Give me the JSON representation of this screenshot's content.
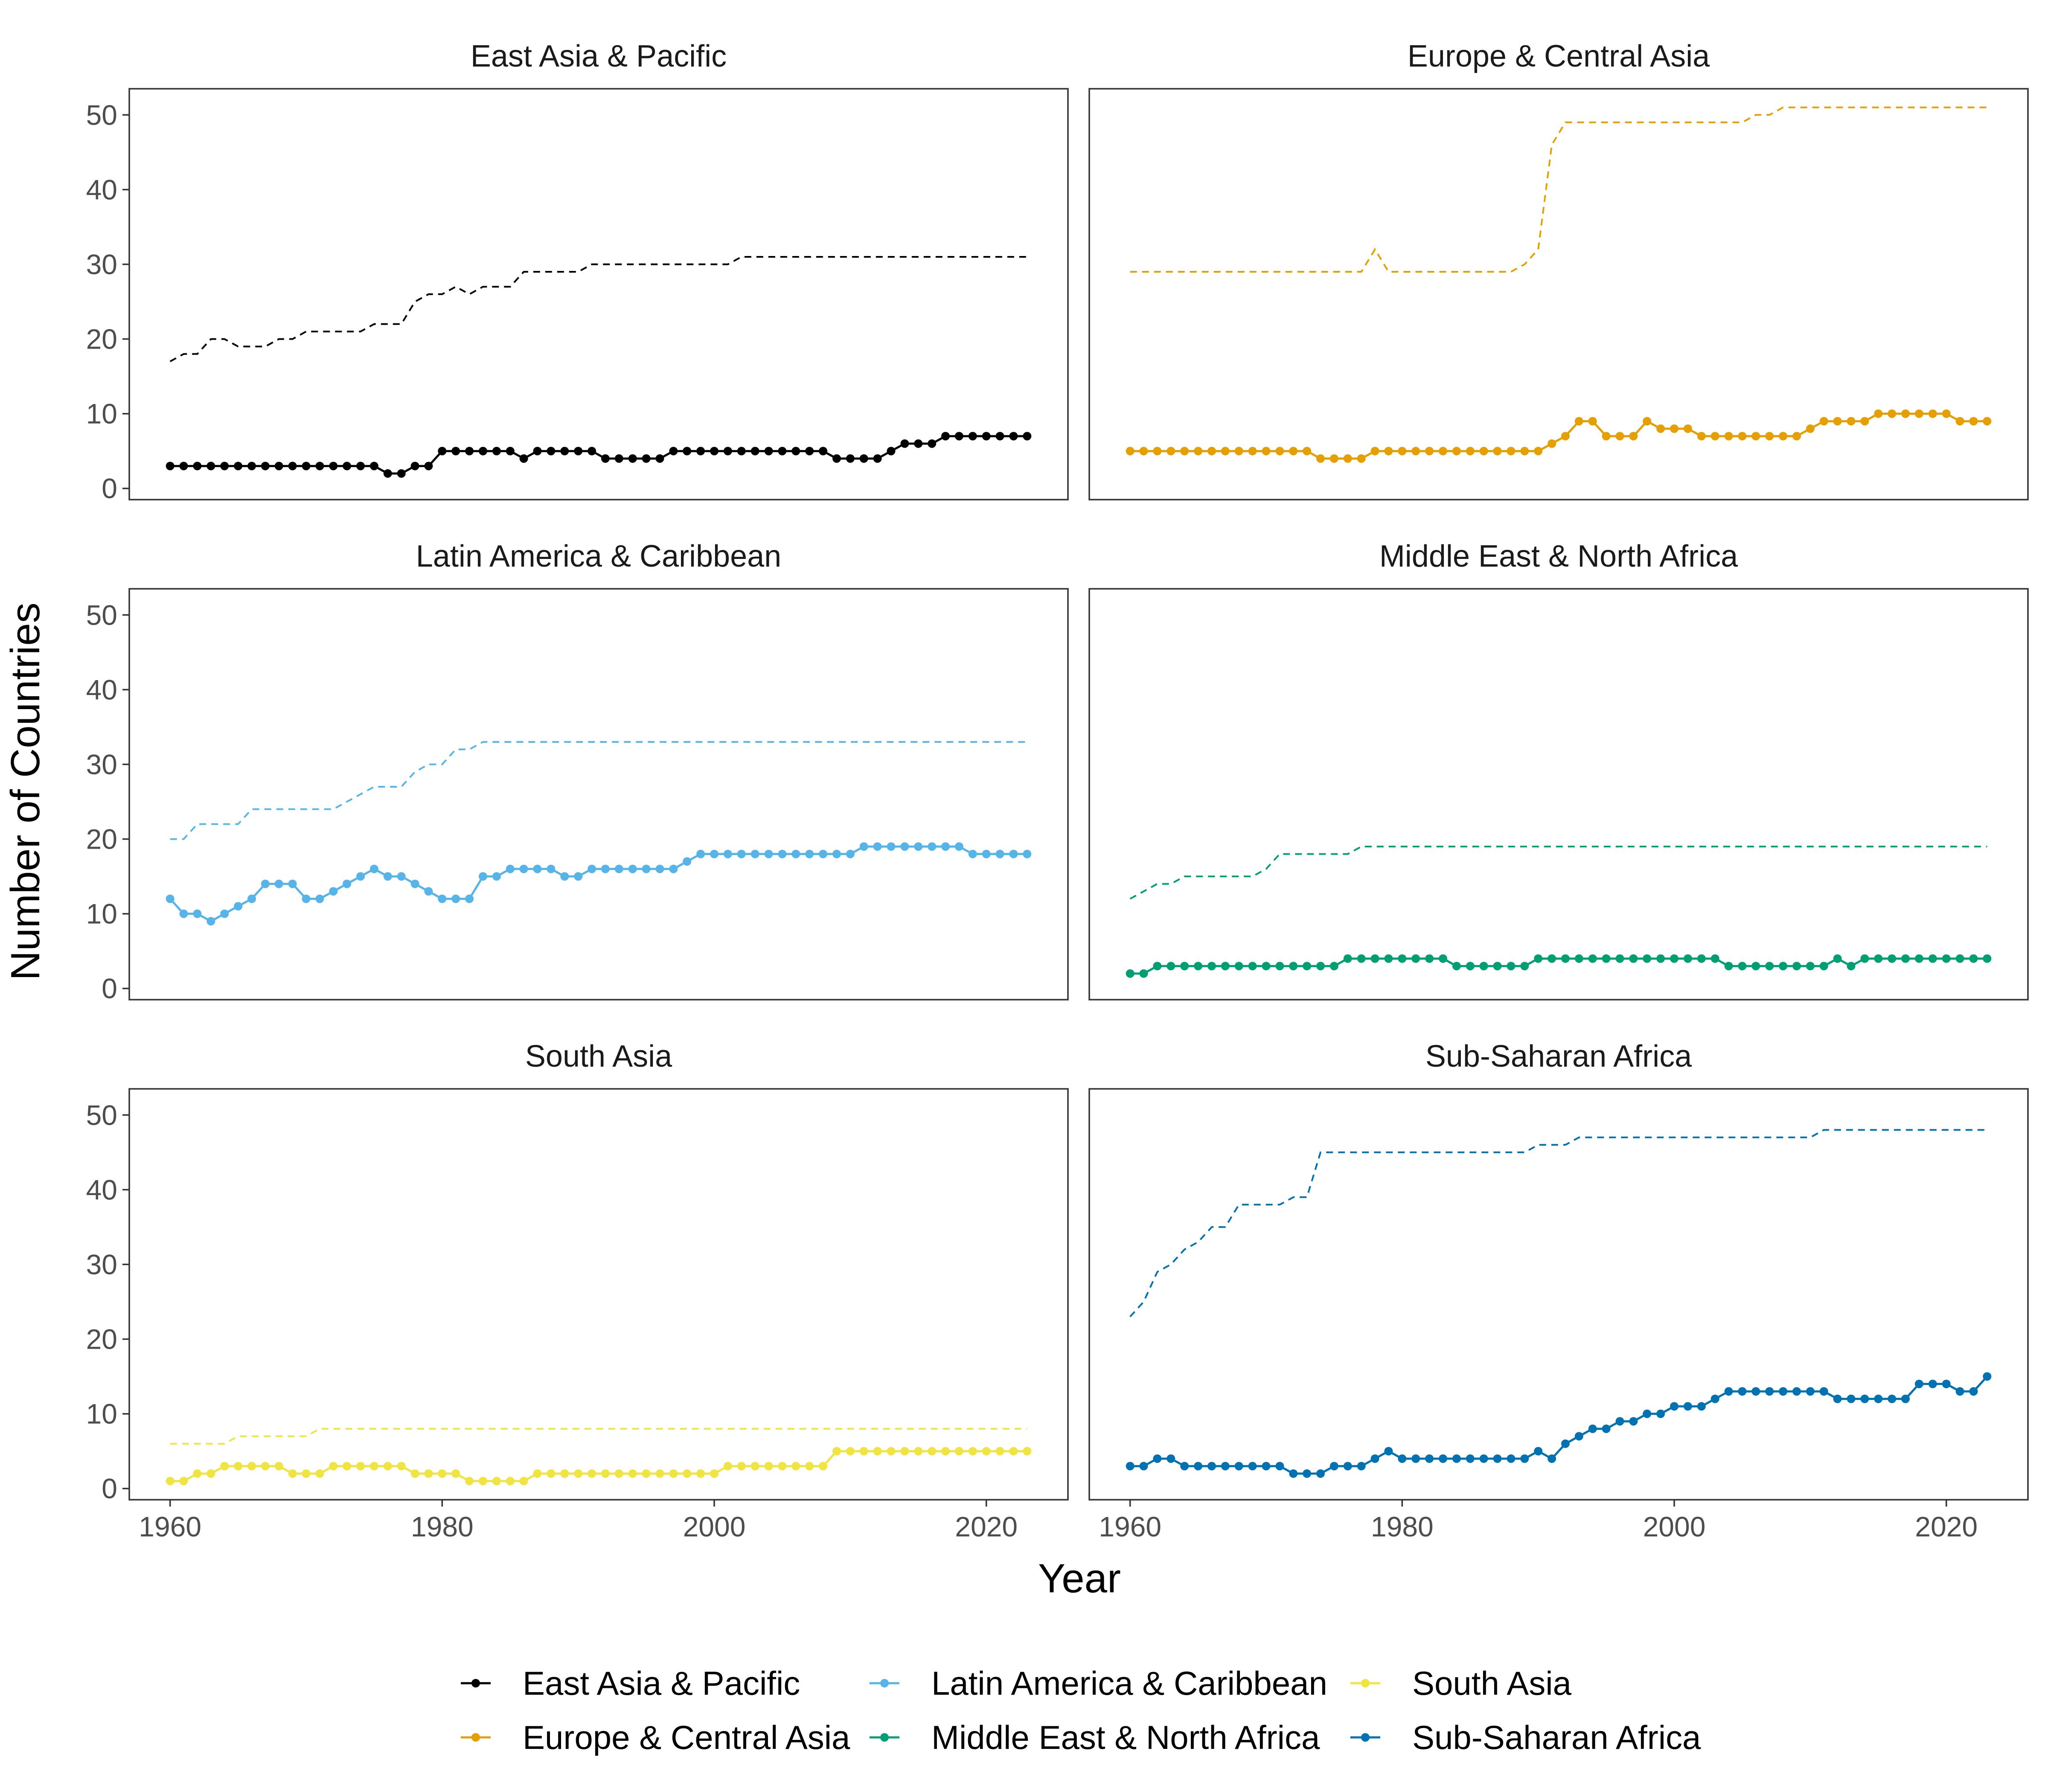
{
  "chart_data": {
    "type": "line",
    "ylabel": "Number of Countries",
    "xlabel": "Year",
    "xlim": [
      1957,
      2026
    ],
    "ylim": [
      -1.5,
      53.5
    ],
    "x_ticks": [
      1960,
      1980,
      2000,
      2020
    ],
    "y_ticks": [
      0,
      10,
      20,
      30,
      40,
      50
    ],
    "grid": false,
    "legend_position": "bottom",
    "x": [
      1960,
      1961,
      1962,
      1963,
      1964,
      1965,
      1966,
      1967,
      1968,
      1969,
      1970,
      1971,
      1972,
      1973,
      1974,
      1975,
      1976,
      1977,
      1978,
      1979,
      1980,
      1981,
      1982,
      1983,
      1984,
      1985,
      1986,
      1987,
      1988,
      1989,
      1990,
      1991,
      1992,
      1993,
      1994,
      1995,
      1996,
      1997,
      1998,
      1999,
      2000,
      2001,
      2002,
      2003,
      2004,
      2005,
      2006,
      2007,
      2008,
      2009,
      2010,
      2011,
      2012,
      2013,
      2014,
      2015,
      2016,
      2017,
      2018,
      2019,
      2020,
      2021,
      2022,
      2023
    ],
    "panels": [
      {
        "title": "East Asia & Pacific",
        "color": "#000000",
        "values": [
          3,
          3,
          3,
          3,
          3,
          3,
          3,
          3,
          3,
          3,
          3,
          3,
          3,
          3,
          3,
          3,
          2,
          2,
          3,
          3,
          5,
          5,
          5,
          5,
          5,
          5,
          4,
          5,
          5,
          5,
          5,
          5,
          4,
          4,
          4,
          4,
          4,
          5,
          5,
          5,
          5,
          5,
          5,
          5,
          5,
          5,
          5,
          5,
          5,
          4,
          4,
          4,
          4,
          5,
          6,
          6,
          6,
          7,
          7,
          7,
          7,
          7,
          7,
          7
        ],
        "total": [
          17,
          18,
          18,
          20,
          20,
          19,
          19,
          19,
          20,
          20,
          21,
          21,
          21,
          21,
          21,
          22,
          22,
          22,
          25,
          26,
          26,
          27,
          26,
          27,
          27,
          27,
          29,
          29,
          29,
          29,
          29,
          30,
          30,
          30,
          30,
          30,
          30,
          30,
          30,
          30,
          30,
          30,
          31,
          31,
          31,
          31,
          31,
          31,
          31,
          31,
          31,
          31,
          31,
          31,
          31,
          31,
          31,
          31,
          31,
          31,
          31,
          31,
          31,
          31
        ]
      },
      {
        "title": "Europe & Central Asia",
        "color": "#E69F00",
        "values": [
          5,
          5,
          5,
          5,
          5,
          5,
          5,
          5,
          5,
          5,
          5,
          5,
          5,
          5,
          4,
          4,
          4,
          4,
          5,
          5,
          5,
          5,
          5,
          5,
          5,
          5,
          5,
          5,
          5,
          5,
          5,
          6,
          7,
          9,
          9,
          7,
          7,
          7,
          9,
          8,
          8,
          8,
          7,
          7,
          7,
          7,
          7,
          7,
          7,
          7,
          8,
          9,
          9,
          9,
          9,
          10,
          10,
          10,
          10,
          10,
          10,
          9,
          9,
          9
        ],
        "total": [
          29,
          29,
          29,
          29,
          29,
          29,
          29,
          29,
          29,
          29,
          29,
          29,
          29,
          29,
          29,
          29,
          29,
          29,
          32,
          29,
          29,
          29,
          29,
          29,
          29,
          29,
          29,
          29,
          29,
          30,
          32,
          46,
          49,
          49,
          49,
          49,
          49,
          49,
          49,
          49,
          49,
          49,
          49,
          49,
          49,
          49,
          50,
          50,
          51,
          51,
          51,
          51,
          51,
          51,
          51,
          51,
          51,
          51,
          51,
          51,
          51,
          51,
          51,
          51
        ]
      },
      {
        "title": "Latin America & Caribbean",
        "color": "#56B4E9",
        "values": [
          12,
          10,
          10,
          9,
          10,
          11,
          12,
          14,
          14,
          14,
          12,
          12,
          13,
          14,
          15,
          16,
          15,
          15,
          14,
          13,
          12,
          12,
          12,
          15,
          15,
          16,
          16,
          16,
          16,
          15,
          15,
          16,
          16,
          16,
          16,
          16,
          16,
          16,
          17,
          18,
          18,
          18,
          18,
          18,
          18,
          18,
          18,
          18,
          18,
          18,
          18,
          19,
          19,
          19,
          19,
          19,
          19,
          19,
          19,
          18,
          18,
          18,
          18,
          18
        ],
        "total": [
          20,
          20,
          22,
          22,
          22,
          22,
          24,
          24,
          24,
          24,
          24,
          24,
          24,
          25,
          26,
          27,
          27,
          27,
          29,
          30,
          30,
          32,
          32,
          33,
          33,
          33,
          33,
          33,
          33,
          33,
          33,
          33,
          33,
          33,
          33,
          33,
          33,
          33,
          33,
          33,
          33,
          33,
          33,
          33,
          33,
          33,
          33,
          33,
          33,
          33,
          33,
          33,
          33,
          33,
          33,
          33,
          33,
          33,
          33,
          33,
          33,
          33,
          33,
          33
        ]
      },
      {
        "title": "Middle East & North Africa",
        "color": "#009E73",
        "values": [
          2,
          2,
          3,
          3,
          3,
          3,
          3,
          3,
          3,
          3,
          3,
          3,
          3,
          3,
          3,
          3,
          4,
          4,
          4,
          4,
          4,
          4,
          4,
          4,
          3,
          3,
          3,
          3,
          3,
          3,
          4,
          4,
          4,
          4,
          4,
          4,
          4,
          4,
          4,
          4,
          4,
          4,
          4,
          4,
          3,
          3,
          3,
          3,
          3,
          3,
          3,
          3,
          4,
          3,
          4,
          4,
          4,
          4,
          4,
          4,
          4,
          4,
          4,
          4
        ],
        "total": [
          12,
          13,
          14,
          14,
          15,
          15,
          15,
          15,
          15,
          15,
          16,
          18,
          18,
          18,
          18,
          18,
          18,
          19,
          19,
          19,
          19,
          19,
          19,
          19,
          19,
          19,
          19,
          19,
          19,
          19,
          19,
          19,
          19,
          19,
          19,
          19,
          19,
          19,
          19,
          19,
          19,
          19,
          19,
          19,
          19,
          19,
          19,
          19,
          19,
          19,
          19,
          19,
          19,
          19,
          19,
          19,
          19,
          19,
          19,
          19,
          19,
          19,
          19,
          19
        ]
      },
      {
        "title": "South Asia",
        "color": "#F0E442",
        "values": [
          1,
          1,
          2,
          2,
          3,
          3,
          3,
          3,
          3,
          2,
          2,
          2,
          3,
          3,
          3,
          3,
          3,
          3,
          2,
          2,
          2,
          2,
          1,
          1,
          1,
          1,
          1,
          2,
          2,
          2,
          2,
          2,
          2,
          2,
          2,
          2,
          2,
          2,
          2,
          2,
          2,
          3,
          3,
          3,
          3,
          3,
          3,
          3,
          3,
          5,
          5,
          5,
          5,
          5,
          5,
          5,
          5,
          5,
          5,
          5,
          5,
          5,
          5,
          5
        ],
        "total": [
          6,
          6,
          6,
          6,
          6,
          7,
          7,
          7,
          7,
          7,
          7,
          8,
          8,
          8,
          8,
          8,
          8,
          8,
          8,
          8,
          8,
          8,
          8,
          8,
          8,
          8,
          8,
          8,
          8,
          8,
          8,
          8,
          8,
          8,
          8,
          8,
          8,
          8,
          8,
          8,
          8,
          8,
          8,
          8,
          8,
          8,
          8,
          8,
          8,
          8,
          8,
          8,
          8,
          8,
          8,
          8,
          8,
          8,
          8,
          8,
          8,
          8,
          8,
          8
        ]
      },
      {
        "title": "Sub-Saharan Africa",
        "color": "#0072B2",
        "values": [
          3,
          3,
          4,
          4,
          3,
          3,
          3,
          3,
          3,
          3,
          3,
          3,
          2,
          2,
          2,
          3,
          3,
          3,
          4,
          5,
          4,
          4,
          4,
          4,
          4,
          4,
          4,
          4,
          4,
          4,
          5,
          4,
          6,
          7,
          8,
          8,
          9,
          9,
          10,
          10,
          11,
          11,
          11,
          12,
          13,
          13,
          13,
          13,
          13,
          13,
          13,
          13,
          12,
          12,
          12,
          12,
          12,
          12,
          14,
          14,
          14,
          13,
          13,
          15
        ],
        "total": [
          23,
          25,
          29,
          30,
          32,
          33,
          35,
          35,
          38,
          38,
          38,
          38,
          39,
          39,
          45,
          45,
          45,
          45,
          45,
          45,
          45,
          45,
          45,
          45,
          45,
          45,
          45,
          45,
          45,
          45,
          46,
          46,
          46,
          47,
          47,
          47,
          47,
          47,
          47,
          47,
          47,
          47,
          47,
          47,
          47,
          47,
          47,
          47,
          47,
          47,
          47,
          48,
          48,
          48,
          48,
          48,
          48,
          48,
          48,
          48,
          48,
          48,
          48,
          48
        ]
      }
    ]
  }
}
